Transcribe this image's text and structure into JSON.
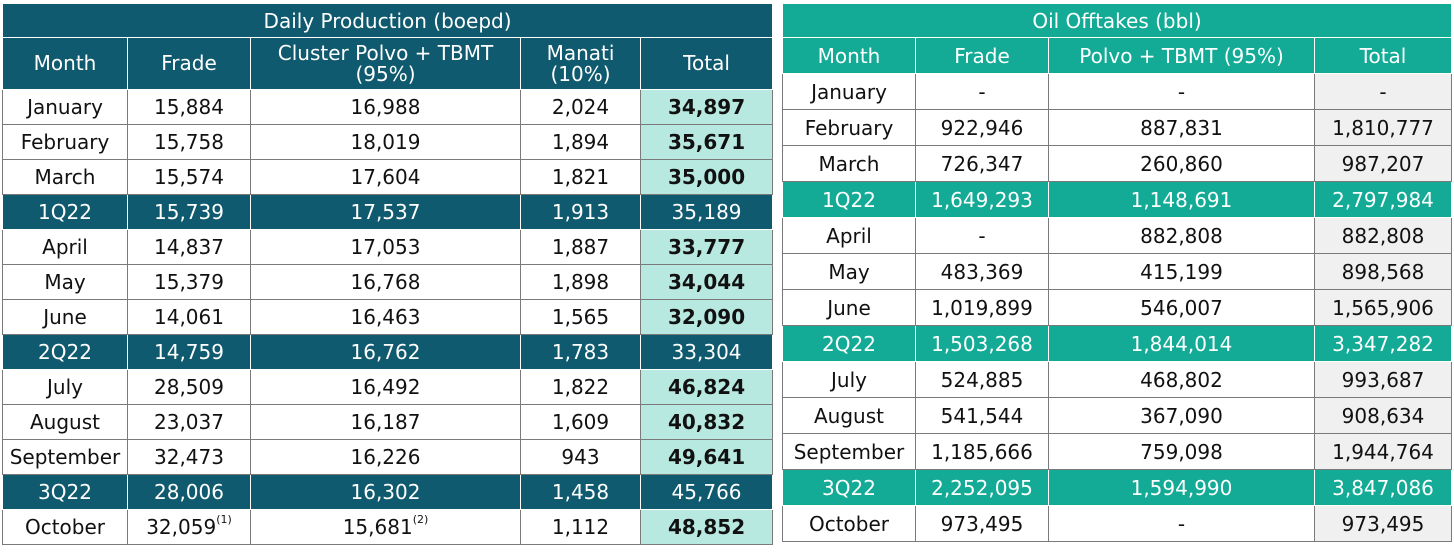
{
  "production": {
    "title": "Daily Production (boepd)",
    "headers": [
      "Month",
      "Frade",
      "Cluster Polvo + TBMT\n(95%)",
      "Manati\n(10%)",
      "Total"
    ],
    "rows": [
      {
        "type": "month",
        "cells": [
          "January",
          "15,884",
          "16,988",
          "2,024",
          "34,897"
        ]
      },
      {
        "type": "month",
        "cells": [
          "February",
          "15,758",
          "18,019",
          "1,894",
          "35,671"
        ]
      },
      {
        "type": "month",
        "cells": [
          "March",
          "15,574",
          "17,604",
          "1,821",
          "35,000"
        ]
      },
      {
        "type": "quarter",
        "cells": [
          "1Q22",
          "15,739",
          "17,537",
          "1,913",
          "35,189"
        ]
      },
      {
        "type": "month",
        "cells": [
          "April",
          "14,837",
          "17,053",
          "1,887",
          "33,777"
        ]
      },
      {
        "type": "month",
        "cells": [
          "May",
          "15,379",
          "16,768",
          "1,898",
          "34,044"
        ]
      },
      {
        "type": "month",
        "cells": [
          "June",
          "14,061",
          "16,463",
          "1,565",
          "32,090"
        ]
      },
      {
        "type": "quarter",
        "cells": [
          "2Q22",
          "14,759",
          "16,762",
          "1,783",
          "33,304"
        ]
      },
      {
        "type": "month",
        "cells": [
          "July",
          "28,509",
          "16,492",
          "1,822",
          "46,824"
        ]
      },
      {
        "type": "month",
        "cells": [
          "August",
          "23,037",
          "16,187",
          "1,609",
          "40,832"
        ]
      },
      {
        "type": "month",
        "cells": [
          "September",
          "32,473",
          "16,226",
          "943",
          "49,641"
        ]
      },
      {
        "type": "quarter",
        "cells": [
          "3Q22",
          "28,006",
          "16,302",
          "1,458",
          "45,766"
        ]
      },
      {
        "type": "month",
        "cells": [
          "October",
          "32,059",
          "15,681",
          "1,112",
          "48,852"
        ],
        "sups": [
          "",
          "(1)",
          "(2)",
          "",
          ""
        ]
      }
    ]
  },
  "offtakes": {
    "title": "Oil Offtakes (bbl)",
    "headers": [
      "Month",
      "Frade",
      "Polvo + TBMT (95%)",
      "Total"
    ],
    "rows": [
      {
        "type": "month",
        "cells": [
          "January",
          "-",
          "-",
          "-"
        ]
      },
      {
        "type": "month",
        "cells": [
          "February",
          "922,946",
          "887,831",
          "1,810,777"
        ]
      },
      {
        "type": "month",
        "cells": [
          "March",
          "726,347",
          "260,860",
          "987,207"
        ]
      },
      {
        "type": "quarter",
        "cells": [
          "1Q22",
          "1,649,293",
          "1,148,691",
          "2,797,984"
        ]
      },
      {
        "type": "month",
        "cells": [
          "April",
          "-",
          "882,808",
          "882,808"
        ]
      },
      {
        "type": "month",
        "cells": [
          "May",
          "483,369",
          "415,199",
          "898,568"
        ]
      },
      {
        "type": "month",
        "cells": [
          "June",
          "1,019,899",
          "546,007",
          "1,565,906"
        ]
      },
      {
        "type": "quarter",
        "cells": [
          "2Q22",
          "1,503,268",
          "1,844,014",
          "3,347,282"
        ]
      },
      {
        "type": "month",
        "cells": [
          "July",
          "524,885",
          "468,802",
          "993,687"
        ]
      },
      {
        "type": "month",
        "cells": [
          "August",
          "541,544",
          "367,090",
          "908,634"
        ]
      },
      {
        "type": "month",
        "cells": [
          "September",
          "1,185,666",
          "759,098",
          "1,944,764"
        ]
      },
      {
        "type": "quarter",
        "cells": [
          "3Q22",
          "2,252,095",
          "1,594,990",
          "3,847,086"
        ]
      },
      {
        "type": "month",
        "cells": [
          "October",
          "973,495",
          "-",
          "973,495"
        ]
      }
    ]
  },
  "colors": {
    "production_header": "#0f5a6e",
    "offtakes_header": "#13ab96",
    "production_total": "#b8e9e1",
    "offtakes_total": "#f0f0f0"
  }
}
